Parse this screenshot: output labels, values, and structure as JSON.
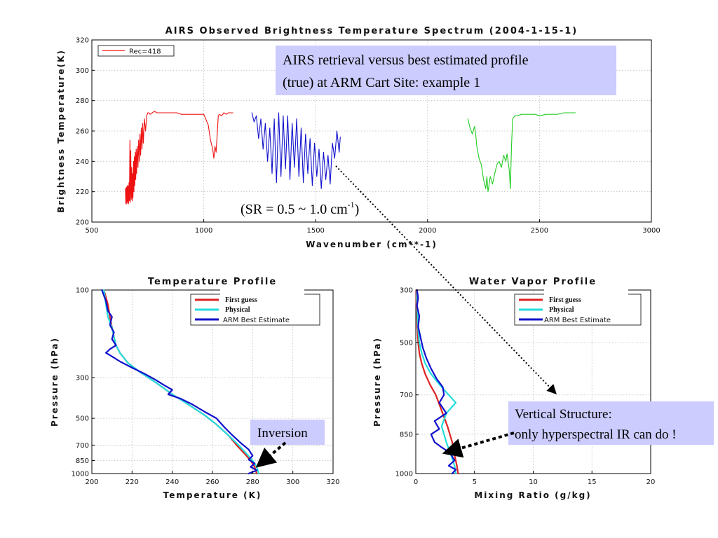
{
  "annotations": {
    "headline_line1": "AIRS retrieval versus best estimated profile",
    "headline_line2": "(true) at ARM Cart Site: example 1",
    "sr_prefix": "(SR = 0.5 ~ 1.0 cm",
    "sr_sup": "-1",
    "sr_suffix": ")",
    "inversion": "Inversion",
    "vertical_line1": "Vertical Structure:",
    "vertical_line2": "only hyperspectral IR can do !",
    "box_color": "#ccccff"
  },
  "chart_data": [
    {
      "type": "line",
      "title": "AIRS Observed Brightness Temperature Spectrum (2004-1-15-1)",
      "xlabel": "Wavenumber (cm**-1)",
      "ylabel": "Brightness Temperature(K)",
      "xlim": [
        500,
        3000
      ],
      "ylim": [
        200,
        320
      ],
      "xticks": [
        500,
        1000,
        1500,
        2000,
        2500,
        3000
      ],
      "yticks": [
        200,
        220,
        240,
        260,
        280,
        300,
        320
      ],
      "grid": true,
      "legend": {
        "position": "top-left",
        "entries": [
          {
            "label": "Rec=418",
            "color": "#ff0000"
          }
        ]
      },
      "series": [
        {
          "color": "#ee1111",
          "x": [
            650,
            652,
            654,
            656,
            658,
            660,
            662,
            664,
            666,
            668,
            670,
            672,
            674,
            676,
            678,
            680,
            682,
            684,
            686,
            688,
            690,
            692,
            694,
            696,
            698,
            700,
            703,
            706,
            709,
            712,
            715,
            718,
            721,
            724,
            727,
            730,
            735,
            740,
            745,
            750,
            755,
            760,
            770,
            780,
            790,
            800,
            820,
            850,
            880,
            900,
            920,
            940,
            960,
            980,
            1000,
            1020,
            1030,
            1040,
            1045,
            1050,
            1055,
            1060,
            1065,
            1070,
            1080,
            1090,
            1100,
            1110,
            1120,
            1130
          ],
          "y": [
            222,
            212,
            223,
            212,
            224,
            213,
            224,
            212,
            226,
            214,
            254,
            213,
            247,
            215,
            236,
            214,
            232,
            216,
            240,
            220,
            243,
            224,
            246,
            228,
            248,
            232,
            250,
            236,
            254,
            240,
            258,
            244,
            262,
            248,
            265,
            252,
            268,
            260,
            270,
            272,
            272,
            271,
            272,
            273,
            272,
            272,
            272,
            272,
            272,
            271,
            271,
            271,
            271,
            271,
            271,
            264,
            254,
            248,
            242,
            250,
            246,
            258,
            270,
            271,
            270,
            272,
            271,
            272,
            272,
            272
          ]
        },
        {
          "color": "#1111cc",
          "x": [
            1215,
            1225,
            1235,
            1245,
            1255,
            1265,
            1275,
            1285,
            1295,
            1305,
            1315,
            1325,
            1335,
            1345,
            1355,
            1365,
            1375,
            1385,
            1395,
            1405,
            1415,
            1425,
            1435,
            1445,
            1455,
            1465,
            1475,
            1485,
            1495,
            1505,
            1515,
            1525,
            1535,
            1545,
            1555,
            1565,
            1575,
            1585,
            1595,
            1605,
            1610
          ],
          "y": [
            272,
            266,
            270,
            255,
            268,
            248,
            265,
            240,
            262,
            232,
            268,
            226,
            272,
            230,
            270,
            235,
            270,
            228,
            265,
            236,
            268,
            230,
            262,
            226,
            258,
            232,
            255,
            224,
            252,
            230,
            248,
            222,
            246,
            228,
            244,
            225,
            252,
            242,
            260,
            246,
            256
          ]
        },
        {
          "color": "#22cc22",
          "x": [
            2180,
            2190,
            2200,
            2210,
            2215,
            2220,
            2230,
            2240,
            2250,
            2260,
            2265,
            2270,
            2275,
            2280,
            2290,
            2300,
            2310,
            2320,
            2330,
            2340,
            2350,
            2355,
            2360,
            2365,
            2370,
            2375,
            2380,
            2390,
            2400,
            2420,
            2450,
            2480,
            2500,
            2530,
            2550,
            2580,
            2610,
            2640,
            2660
          ],
          "y": [
            268,
            262,
            258,
            263,
            258,
            250,
            242,
            238,
            228,
            222,
            230,
            220,
            225,
            230,
            225,
            232,
            238,
            240,
            236,
            244,
            240,
            245,
            240,
            234,
            222,
            250,
            268,
            270,
            270,
            271,
            271,
            271,
            270,
            271,
            271,
            271,
            272,
            272,
            272
          ]
        }
      ]
    },
    {
      "type": "line",
      "title": "Temperature Profile",
      "xlabel": "Temperature (K)",
      "ylabel": "Pressure (hPa)",
      "xlim": [
        200,
        320
      ],
      "ylim": [
        1000,
        100
      ],
      "yscale": "log",
      "xticks": [
        200,
        220,
        240,
        260,
        280,
        300,
        320
      ],
      "yticks": [
        100,
        300,
        500,
        700,
        850,
        1000
      ],
      "grid": true,
      "legend": {
        "position": "top-right",
        "entries": [
          {
            "label": "First guess",
            "color": "#dd2222"
          },
          {
            "label": "Physical",
            "color": "#22dddd"
          },
          {
            "label": "ARM Best Estimate",
            "color": "#1111cc"
          }
        ]
      },
      "series": [
        {
          "name": "First guess",
          "color": "#dd2222",
          "x": [
            206,
            208,
            209,
            210,
            211,
            212,
            214,
            218,
            224,
            232,
            240,
            248,
            256,
            262,
            268,
            272,
            276,
            279,
            281,
            282
          ],
          "y": [
            100,
            120,
            140,
            160,
            180,
            200,
            220,
            250,
            280,
            320,
            370,
            420,
            480,
            540,
            620,
            700,
            780,
            850,
            920,
            1000
          ]
        },
        {
          "name": "Physical",
          "color": "#22dddd",
          "x": [
            206,
            207,
            208,
            210,
            211,
            212,
            214,
            218,
            224,
            232,
            240,
            248,
            256,
            262,
            268,
            273,
            277,
            280,
            282,
            283
          ],
          "y": [
            100,
            120,
            140,
            160,
            180,
            200,
            220,
            250,
            280,
            320,
            370,
            420,
            480,
            540,
            620,
            700,
            780,
            850,
            920,
            1000
          ]
        },
        {
          "name": "ARM Best Estimate",
          "color": "#1111cc",
          "x": [
            205,
            207,
            208,
            210,
            209,
            211,
            210,
            212,
            209,
            207,
            210,
            214,
            220,
            226,
            232,
            236,
            240,
            238,
            244,
            250,
            256,
            262,
            264,
            266,
            270,
            274,
            278,
            280,
            278,
            281,
            279,
            282,
            278
          ],
          "y": [
            100,
            115,
            130,
            140,
            155,
            170,
            185,
            200,
            210,
            220,
            230,
            245,
            265,
            285,
            310,
            330,
            350,
            370,
            390,
            420,
            460,
            500,
            530,
            560,
            620,
            680,
            740,
            800,
            840,
            880,
            920,
            960,
            1000
          ]
        }
      ]
    },
    {
      "type": "line",
      "title": "Water Vapor Profile",
      "xlabel": "Mixing Ratio (g/kg)",
      "ylabel": "Pressure (hPa)",
      "xlim": [
        0,
        20
      ],
      "ylim": [
        1000,
        300
      ],
      "xticks": [
        0,
        5,
        10,
        15,
        20
      ],
      "yticks": [
        300,
        500,
        700,
        850,
        1000
      ],
      "grid": true,
      "legend": {
        "position": "top-right",
        "entries": [
          {
            "label": "First guess",
            "color": "#dd2222"
          },
          {
            "label": "Physical",
            "color": "#22dddd"
          },
          {
            "label": "ARM Best Estimate",
            "color": "#1111cc"
          }
        ]
      },
      "series": [
        {
          "name": "First guess",
          "color": "#dd2222",
          "x": [
            0.05,
            0.05,
            0.1,
            0.15,
            0.2,
            0.3,
            0.5,
            0.8,
            1.2,
            1.7,
            2.2,
            2.7,
            3.1,
            3.3,
            3.5,
            3.6
          ],
          "y": [
            300,
            350,
            400,
            450,
            500,
            540,
            580,
            620,
            660,
            700,
            760,
            820,
            880,
            930,
            970,
            1000
          ]
        },
        {
          "name": "Physical",
          "color": "#22dddd",
          "x": [
            0.1,
            0.1,
            0.15,
            0.2,
            0.3,
            0.5,
            0.8,
            1.3,
            2.0,
            2.8,
            3.4,
            2.6,
            2.2,
            2.6,
            3.0,
            3.3,
            3.4
          ],
          "y": [
            300,
            350,
            400,
            450,
            500,
            540,
            580,
            620,
            660,
            700,
            730,
            770,
            820,
            880,
            930,
            970,
            1000
          ]
        },
        {
          "name": "ARM Best Estimate",
          "color": "#1111cc",
          "x": [
            0.1,
            0.2,
            0.1,
            0.3,
            0.2,
            0.4,
            0.6,
            0.9,
            1.3,
            1.8,
            2.3,
            2.4,
            2.0,
            2.6,
            1.6,
            2.0,
            1.3,
            1.6,
            2.2,
            2.9,
            3.3,
            2.8,
            3.4,
            3.1
          ],
          "y": [
            300,
            330,
            360,
            400,
            440,
            480,
            520,
            560,
            600,
            640,
            670,
            700,
            730,
            770,
            800,
            830,
            850,
            880,
            900,
            920,
            950,
            970,
            985,
            1000
          ]
        }
      ]
    }
  ]
}
